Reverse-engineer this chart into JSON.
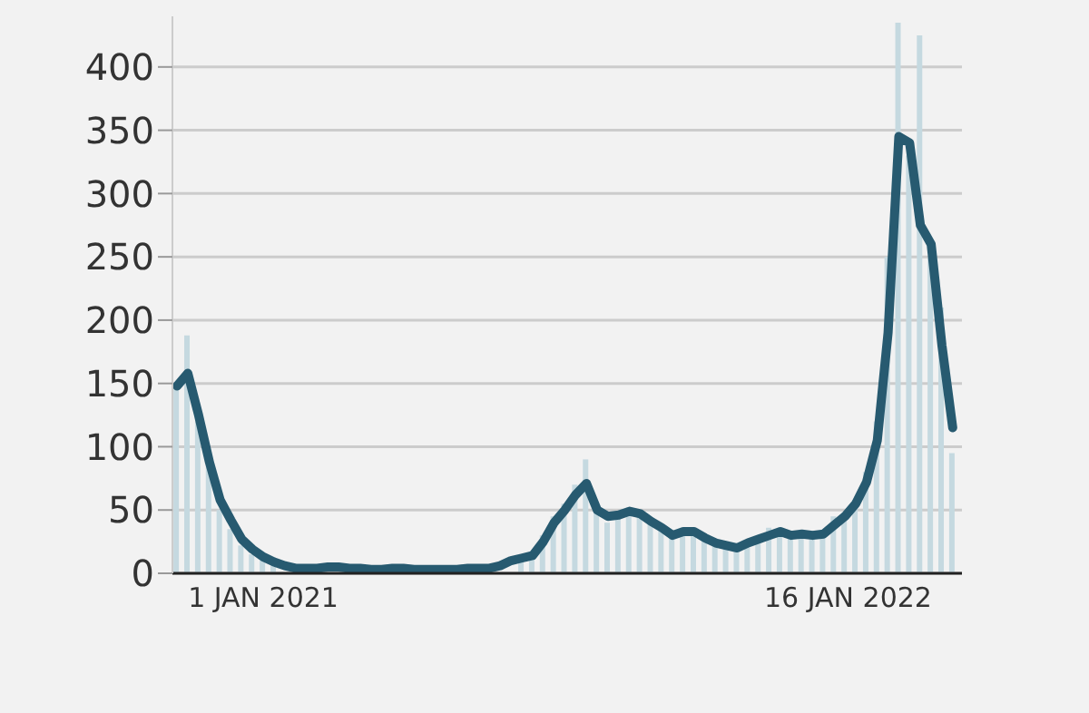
{
  "chart_data": {
    "type": "bar",
    "x": [
      "2020-11-06",
      "2020-11-13",
      "2020-11-20",
      "2020-11-27",
      "2020-12-04",
      "2020-12-11",
      "2020-12-18",
      "2020-12-25",
      "2021-01-01",
      "2021-01-08",
      "2021-01-15",
      "2021-01-22",
      "2021-01-29",
      "2021-02-05",
      "2021-02-12",
      "2021-02-19",
      "2021-02-26",
      "2021-03-05",
      "2021-03-12",
      "2021-03-19",
      "2021-03-26",
      "2021-04-02",
      "2021-04-09",
      "2021-04-16",
      "2021-04-23",
      "2021-04-30",
      "2021-05-07",
      "2021-05-14",
      "2021-05-21",
      "2021-05-28",
      "2021-06-04",
      "2021-06-11",
      "2021-06-18",
      "2021-06-25",
      "2021-07-02",
      "2021-07-09",
      "2021-07-16",
      "2021-07-23",
      "2021-07-30",
      "2021-08-06",
      "2021-08-13",
      "2021-08-20",
      "2021-08-27",
      "2021-09-03",
      "2021-09-10",
      "2021-09-17",
      "2021-09-24",
      "2021-10-01",
      "2021-10-08",
      "2021-10-15",
      "2021-10-22",
      "2021-10-29",
      "2021-11-05",
      "2021-11-12",
      "2021-11-19",
      "2021-11-26",
      "2021-12-03",
      "2021-12-10",
      "2021-12-17",
      "2021-12-24",
      "2021-12-31",
      "2022-01-07",
      "2022-01-14",
      "2022-01-21",
      "2022-01-28",
      "2022-02-04",
      "2022-02-11",
      "2022-02-18",
      "2022-02-25",
      "2022-03-04",
      "2022-03-11",
      "2022-03-18",
      "2022-03-25"
    ],
    "series": [
      {
        "color": "#c5d9e0",
        "values": [
          150,
          188,
          120,
          85,
          50,
          35,
          22,
          15,
          10,
          8,
          null,
          null,
          null,
          null,
          null,
          null,
          null,
          null,
          null,
          null,
          null,
          null,
          null,
          null,
          null,
          null,
          null,
          null,
          null,
          null,
          null,
          null,
          12,
          15,
          30,
          45,
          55,
          70,
          90,
          48,
          40,
          45,
          52,
          48,
          40,
          35,
          28,
          33,
          30,
          26,
          22,
          20,
          18,
          24,
          28,
          36,
          30,
          28,
          32,
          30,
          32,
          45,
          48,
          58,
          80,
          120,
          250,
          435,
          330,
          425,
          250,
          210,
          95
        ]
      },
      {
        "type": "line",
        "color": "#275a70",
        "values": [
          148,
          158,
          125,
          88,
          58,
          42,
          27,
          19,
          13,
          9,
          6,
          4,
          4,
          4,
          5,
          5,
          4,
          4,
          3,
          3,
          4,
          4,
          3,
          3,
          3,
          3,
          3,
          4,
          4,
          4,
          6,
          10,
          12,
          14,
          25,
          40,
          50,
          62,
          71,
          50,
          45,
          46,
          49,
          47,
          41,
          36,
          30,
          33,
          33,
          28,
          24,
          22,
          20,
          24,
          27,
          30,
          33,
          30,
          31,
          30,
          31,
          38,
          45,
          55,
          72,
          105,
          190,
          345,
          340,
          275,
          260,
          180,
          115
        ]
      }
    ],
    "xlim": [
      "2020-11-03",
      "2022-03-31"
    ],
    "xticks": [
      {
        "value": "2021-01-01",
        "label": "1 JAN 2021"
      },
      {
        "value": "2022-01-16",
        "label": "16 JAN 2022"
      }
    ],
    "ylim": [
      0,
      440
    ],
    "yticks": [
      0,
      50,
      100,
      150,
      200,
      250,
      300,
      350,
      400
    ],
    "grid": "y"
  }
}
